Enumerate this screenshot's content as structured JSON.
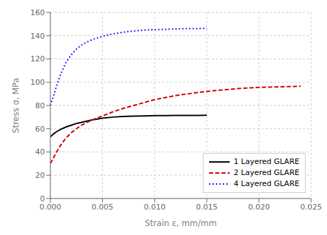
{
  "chart_data": {
    "type": "line",
    "xlabel": "Strain ε, mm/mm",
    "ylabel": "Stress σ, MPa",
    "xlim": [
      0.0,
      0.025
    ],
    "ylim": [
      0,
      160
    ],
    "xticks": [
      {
        "value": 0,
        "label": "0.000"
      },
      0.005,
      {
        "value": 0.01,
        "label": "0.010"
      },
      0.015,
      {
        "value": 0.02,
        "label": "0.020"
      },
      0.025
    ],
    "yticks": [
      0,
      20,
      40,
      60,
      80,
      100,
      120,
      140,
      160
    ],
    "grid": true,
    "legend": "lower right",
    "series": [
      {
        "name": "1 Layered GLARE",
        "color": "#000000",
        "line_style": "solid",
        "x": [
          0.0,
          0.0003,
          0.0006,
          0.001,
          0.0015,
          0.002,
          0.0025,
          0.003,
          0.0035,
          0.004,
          0.0045,
          0.005,
          0.006,
          0.007,
          0.008,
          0.009,
          0.01,
          0.011,
          0.012,
          0.013,
          0.014,
          0.015
        ],
        "values": [
          53.0,
          55.5,
          57.5,
          59.5,
          61.5,
          63.0,
          64.5,
          65.5,
          66.5,
          67.5,
          68.3,
          69.0,
          70.0,
          70.5,
          70.8,
          71.0,
          71.2,
          71.3,
          71.4,
          71.4,
          71.4,
          71.5
        ]
      },
      {
        "name": "2 Layered GLARE",
        "color": "#cc0000",
        "line_style": "dashed",
        "x": [
          0.0,
          0.0003,
          0.0006,
          0.001,
          0.0015,
          0.002,
          0.0025,
          0.003,
          0.0035,
          0.004,
          0.005,
          0.006,
          0.007,
          0.008,
          0.009,
          0.01,
          0.012,
          0.014,
          0.016,
          0.018,
          0.02,
          0.022,
          0.024
        ],
        "values": [
          30.0,
          35.0,
          40.0,
          46.0,
          52.0,
          56.5,
          60.0,
          63.0,
          65.5,
          67.5,
          71.0,
          74.5,
          77.5,
          80.0,
          82.5,
          85.0,
          88.5,
          91.0,
          93.0,
          94.5,
          95.5,
          96.0,
          96.5
        ]
      },
      {
        "name": "4 Layered GLARE",
        "color": "#1a1aff",
        "line_style": "dotted",
        "x": [
          0.0,
          0.0003,
          0.0006,
          0.001,
          0.0015,
          0.002,
          0.0025,
          0.003,
          0.0035,
          0.004,
          0.005,
          0.006,
          0.007,
          0.008,
          0.009,
          0.01,
          0.011,
          0.012,
          0.013,
          0.014,
          0.015
        ],
        "values": [
          80.0,
          88.0,
          97.0,
          107.0,
          117.0,
          123.5,
          128.5,
          132.0,
          134.5,
          136.5,
          139.5,
          141.5,
          143.0,
          144.0,
          144.8,
          145.2,
          145.5,
          145.8,
          146.0,
          146.1,
          146.2
        ]
      }
    ]
  }
}
